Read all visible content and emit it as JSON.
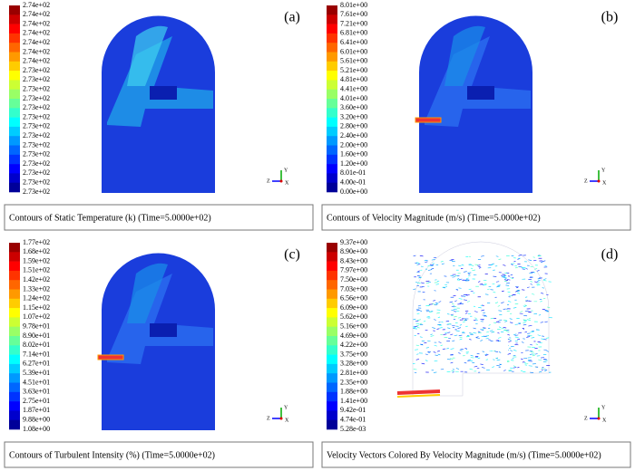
{
  "panels": [
    {
      "label": "(a)",
      "caption": "Contours of Static Temperature (k) (Time=5.0000e+02)",
      "legend": [
        "2.74e+02",
        "2.74e+02",
        "2.74e+02",
        "2.74e+02",
        "2.74e+02",
        "2.74e+02",
        "2.74e+02",
        "2.73e+02",
        "2.73e+02",
        "2.73e+02",
        "2.73e+02",
        "2.73e+02",
        "2.73e+02",
        "2.73e+02",
        "2.73e+02",
        "2.73e+02",
        "2.73e+02",
        "2.73e+02",
        "2.73e+02",
        "2.73e+02",
        "2.73e+02"
      ]
    },
    {
      "label": "(b)",
      "caption": "Contours of Velocity Magnitude (m/s) (Time=5.0000e+02)",
      "legend": [
        "8.01e+00",
        "7.61e+00",
        "7.21e+00",
        "6.81e+00",
        "6.41e+00",
        "6.01e+00",
        "5.61e+00",
        "5.21e+00",
        "4.81e+00",
        "4.41e+00",
        "4.01e+00",
        "3.60e+00",
        "3.20e+00",
        "2.80e+00",
        "2.40e+00",
        "2.00e+00",
        "1.60e+00",
        "1.20e+00",
        "8.01e-01",
        "4.00e-01",
        "0.00e+00"
      ]
    },
    {
      "label": "(c)",
      "caption": "Contours of Turbulent Intensity (%) (Time=5.0000e+02)",
      "legend": [
        "1.77e+02",
        "1.68e+02",
        "1.59e+02",
        "1.51e+02",
        "1.42e+02",
        "1.33e+02",
        "1.24e+02",
        "1.15e+02",
        "1.07e+02",
        "9.78e+01",
        "8.90e+01",
        "8.02e+01",
        "7.14e+01",
        "6.27e+01",
        "5.39e+01",
        "4.51e+01",
        "3.63e+01",
        "2.75e+01",
        "1.87e+01",
        "9.88e+00",
        "1.08e+00"
      ]
    },
    {
      "label": "(d)",
      "caption": "Velocity Vectors Colored By Velocity Magnitude (m/s) (Time=5.0000e+02)",
      "legend": [
        "9.37e+00",
        "8.90e+00",
        "8.43e+00",
        "7.97e+00",
        "7.50e+00",
        "7.03e+00",
        "6.56e+00",
        "6.09e+00",
        "5.62e+00",
        "5.16e+00",
        "4.69e+00",
        "4.22e+00",
        "3.75e+00",
        "3.28e+00",
        "2.81e+00",
        "2.35e+00",
        "1.88e+00",
        "1.41e+00",
        "9.42e-01",
        "4.74e-01",
        "5.28e-03"
      ]
    }
  ],
  "triad": {
    "y": "Y",
    "z": "Z",
    "x": "X"
  }
}
